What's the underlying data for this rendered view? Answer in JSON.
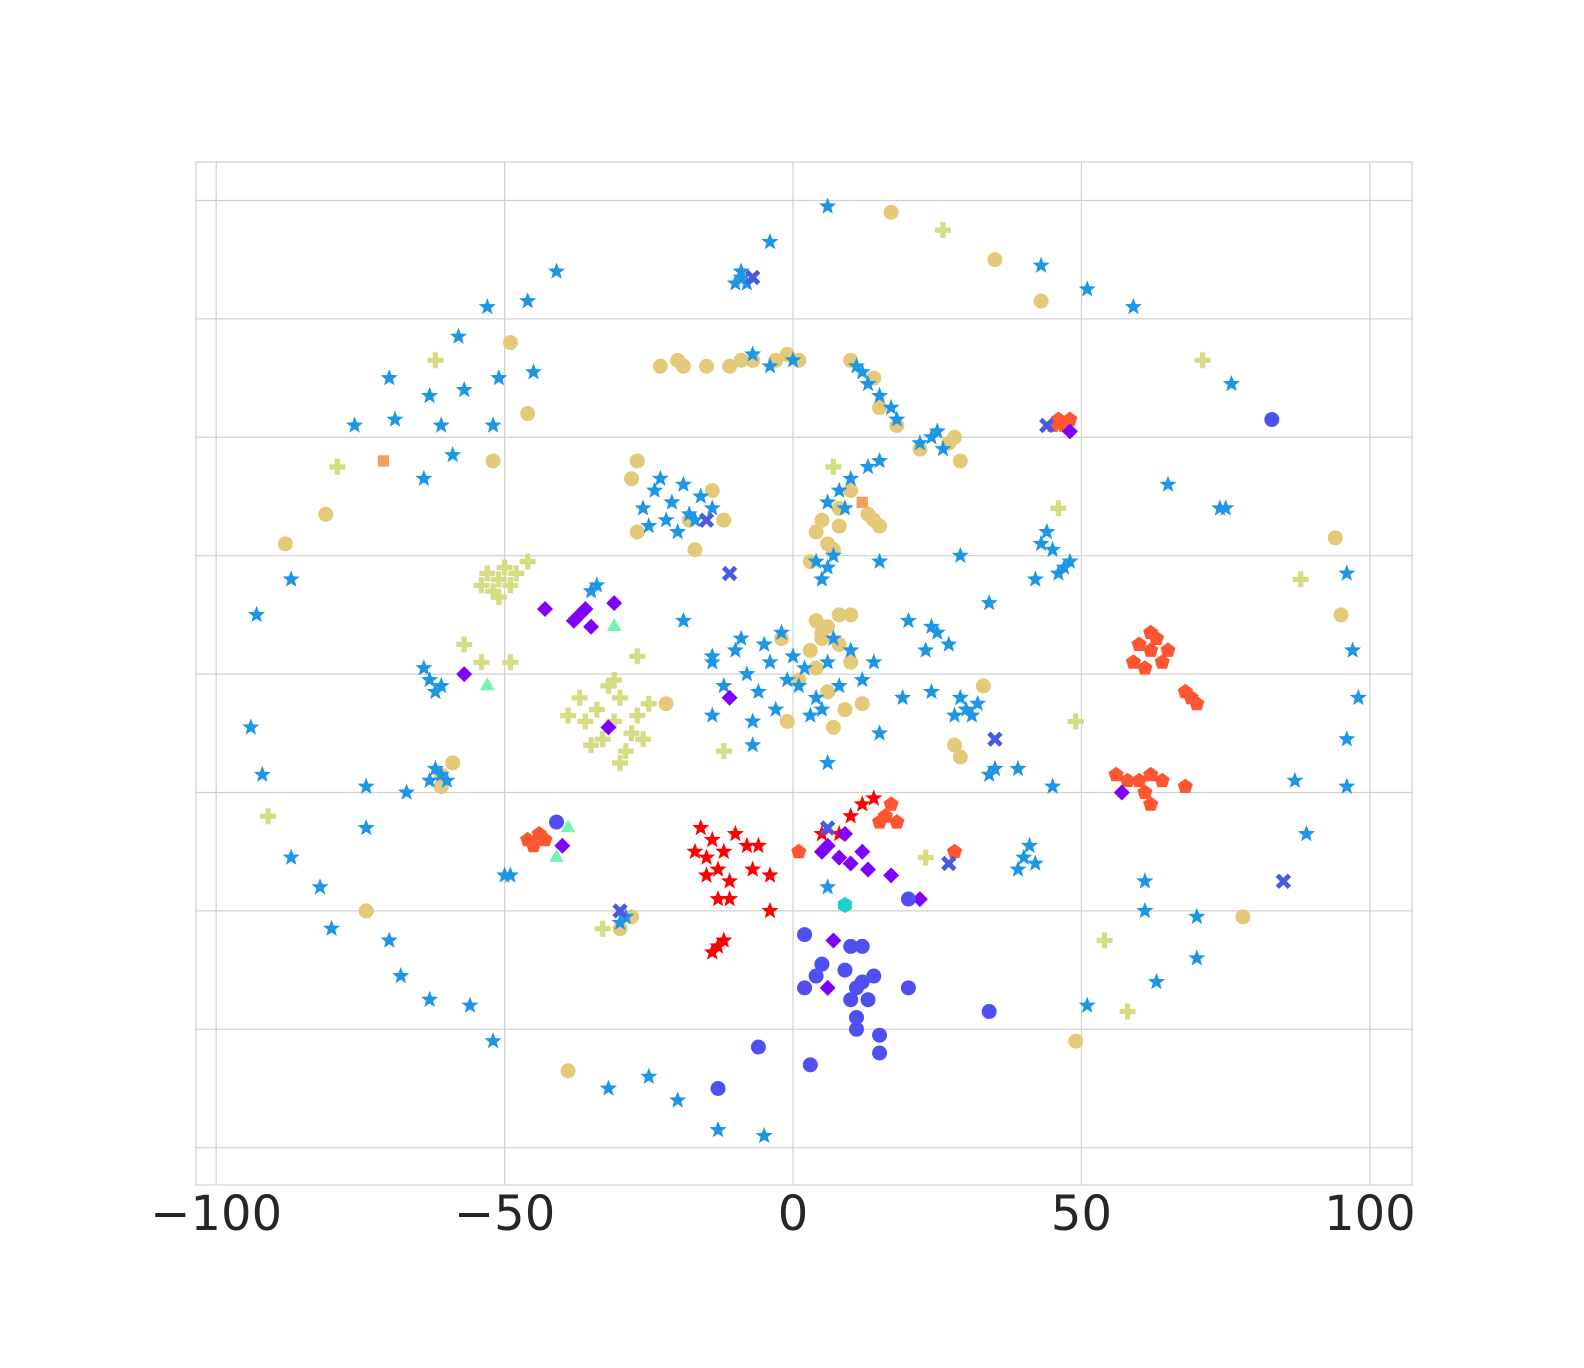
{
  "chart_data": {
    "type": "scatter",
    "xlim": [
      -103.5,
      107.3
    ],
    "ylim": [
      -86.3,
      86.5
    ],
    "xticks": [
      {
        "value": -100,
        "label": "−100"
      },
      {
        "value": -50,
        "label": "−50"
      },
      0,
      50,
      100
    ],
    "yticks": [
      -80,
      -60,
      -40,
      -20,
      0,
      20,
      40,
      60,
      80
    ],
    "show_ytick_labels": false,
    "grid": true,
    "series": [
      {
        "color": "#e3c978",
        "marker": "circle",
        "x": [
          17,
          35,
          43,
          -49,
          -46,
          -52,
          -81,
          -88,
          94,
          95,
          78,
          49,
          -39,
          -74,
          -23,
          -19,
          -15,
          -11,
          -7,
          -3,
          1,
          -1,
          -9,
          -20,
          10,
          14,
          15,
          18,
          22,
          27,
          29,
          28,
          6,
          4,
          8,
          3,
          5,
          7,
          14,
          15,
          13,
          8,
          10,
          1,
          4,
          6,
          3,
          8,
          -1,
          9,
          5,
          7,
          10,
          -2,
          12,
          4,
          -18,
          -28,
          -27,
          -14,
          -17,
          -27,
          -12,
          28,
          29,
          33,
          -61,
          -61,
          -30,
          -28,
          8,
          10,
          6,
          5,
          -22,
          -59
        ],
        "y": [
          78,
          70,
          63,
          56,
          44,
          36,
          27,
          22,
          23,
          10,
          -41,
          -62,
          -67,
          -40,
          52,
          52,
          52,
          52,
          53,
          53,
          53,
          54,
          53,
          53,
          53,
          50,
          45,
          42,
          38,
          39,
          36,
          40,
          22,
          24,
          25,
          19,
          26,
          21,
          26,
          25,
          27,
          28,
          31,
          -1,
          1,
          -3,
          4,
          5,
          -8,
          -6,
          7,
          -9,
          2,
          6,
          -5,
          9,
          26,
          33,
          24,
          31,
          21,
          36,
          26,
          -12,
          -14,
          -2,
          -19,
          -17,
          -43,
          -41,
          10,
          10,
          8,
          6,
          -5,
          -15
        ]
      },
      {
        "color": "#d5dc84",
        "marker": "plus",
        "x": [
          26,
          -62,
          -79,
          71,
          88,
          46,
          49,
          54,
          58,
          -91,
          -33,
          -46,
          -27,
          -57,
          -49,
          -54,
          -12,
          7,
          23,
          -51,
          -53,
          -49,
          -52,
          -50,
          -48,
          -54,
          -51,
          -31,
          -34,
          -28,
          -30,
          -33,
          -27,
          -36,
          -29,
          -32,
          -25,
          -37,
          -30,
          -26,
          -35,
          -31,
          -39
        ],
        "y": [
          75,
          53,
          35,
          53,
          16,
          28,
          -8,
          -45,
          -57,
          -24,
          -43,
          19,
          3,
          5,
          2,
          2,
          -13,
          35,
          -31,
          16,
          17,
          15,
          14,
          18,
          17,
          15,
          13,
          -8,
          -6,
          -10,
          -4,
          -11,
          -7,
          -8,
          -13,
          -2,
          -5,
          -4,
          -15,
          -11,
          -12,
          -1,
          -7
        ]
      },
      {
        "color": "#1e96e6",
        "marker": "star",
        "x": [
          6,
          -4,
          -41,
          -46,
          -53,
          -58,
          -70,
          -63,
          -57,
          -51,
          -45,
          -76,
          -69,
          -61,
          -52,
          -59,
          -64,
          -87,
          -93,
          -94,
          -92,
          -74,
          -67,
          -74,
          -87,
          -82,
          -80,
          -70,
          -68,
          -63,
          -56,
          -52,
          -32,
          -25,
          -20,
          -13,
          -5,
          43,
          51,
          59,
          76,
          96,
          97,
          98,
          96,
          96,
          87,
          89,
          61,
          61,
          70,
          70,
          63,
          51,
          45,
          39,
          42,
          34,
          -9,
          -10,
          -8,
          -9,
          -21,
          -24,
          -18,
          -22,
          -19,
          -26,
          -16,
          -20,
          -23,
          -14,
          -25,
          -17,
          -1,
          -4,
          2,
          -6,
          4,
          0,
          -8,
          6,
          -3,
          3,
          -10,
          8,
          -5,
          1,
          -12,
          10,
          5,
          -7,
          12,
          -2,
          -9,
          7,
          -14,
          14,
          30,
          29,
          31,
          28,
          32,
          6,
          5,
          7,
          4,
          44,
          43,
          45,
          47,
          46,
          48,
          75,
          74,
          65,
          40,
          41,
          39,
          42,
          -61,
          -62,
          -60,
          -63,
          -63,
          -64,
          -61,
          -62,
          -30,
          -29,
          -50,
          -49,
          24,
          22,
          26,
          25,
          17,
          15,
          18,
          12,
          13,
          11,
          8,
          6,
          10,
          9,
          15,
          13,
          25,
          24,
          27,
          23,
          35,
          34,
          29,
          -19,
          -35,
          -34,
          -4,
          0,
          -7,
          15,
          20,
          19,
          15,
          24,
          -7,
          6,
          -14,
          -14,
          6
        ],
        "y": [
          79,
          73,
          68,
          63,
          62,
          57,
          50,
          47,
          48,
          50,
          51,
          42,
          43,
          42,
          42,
          37,
          33,
          16,
          10,
          -9,
          -17,
          -19,
          -20,
          -26,
          -31,
          -36,
          -43,
          -45,
          -51,
          -55,
          -56,
          -62,
          -70,
          -68,
          -72,
          -77,
          -78,
          69,
          65,
          62,
          49,
          17,
          4,
          -4,
          -11,
          -19,
          -18,
          -27,
          -35,
          -40,
          -41,
          -48,
          -52,
          -56,
          -19,
          -16,
          16,
          12,
          67,
          66,
          66,
          68,
          29,
          31,
          27,
          26,
          32,
          28,
          30,
          24,
          33,
          28,
          25,
          26,
          -1,
          2,
          1,
          -3,
          -4,
          3,
          0,
          2,
          -6,
          -7,
          4,
          -2,
          5,
          -2,
          -2,
          4,
          -6,
          -8,
          -1,
          7,
          6,
          6,
          3,
          2,
          -6,
          -4,
          -7,
          -7,
          -5,
          18,
          16,
          20,
          19,
          24,
          22,
          21,
          18,
          17,
          19,
          28,
          28,
          32,
          -31,
          -29,
          -33,
          -32,
          -17,
          -16,
          -18,
          -18,
          -1,
          1,
          -2,
          -3,
          -42,
          -41,
          -34,
          -34,
          40,
          39,
          38,
          41,
          45,
          47,
          43,
          51,
          49,
          52,
          31,
          29,
          33,
          28,
          36,
          35,
          7,
          8,
          5,
          4,
          -16,
          -17,
          20,
          9,
          14,
          15,
          52,
          53,
          54,
          19,
          9,
          -4,
          -10,
          -3,
          -12,
          -15,
          2,
          -7,
          -36
        ]
      },
      {
        "color": "#ff0000",
        "marker": "star",
        "x": [
          -14,
          -16,
          -12,
          -10,
          -15,
          -8,
          -17,
          -13,
          -6,
          -11,
          -15,
          -4,
          -7,
          -13,
          -12,
          -14,
          -4,
          -13,
          -11,
          12,
          14,
          10,
          8,
          5
        ],
        "y": [
          -28,
          -26,
          -30,
          -27,
          -31,
          -29,
          -30,
          -33,
          -29,
          -35,
          -34,
          -34,
          -33,
          -46,
          -45,
          -47,
          -40,
          -38,
          -38,
          -22,
          -21,
          -24,
          -27,
          -27
        ]
      },
      {
        "color": "#ff5530",
        "marker": "pentagon",
        "x": [
          46,
          47,
          45,
          48,
          62,
          60,
          64,
          63,
          59,
          61,
          65,
          62,
          69,
          68,
          70,
          60,
          62,
          64,
          58,
          61,
          56,
          68,
          62,
          16,
          17,
          15,
          18,
          1,
          28,
          -44,
          -45,
          -43,
          -46
        ],
        "y": [
          43,
          42,
          42,
          43,
          4,
          5,
          2,
          6,
          2,
          1,
          4,
          7,
          -4,
          -3,
          -5,
          -18,
          -17,
          -18,
          -18,
          -20,
          -17,
          -19,
          -22,
          -24,
          -22,
          -25,
          -25,
          -30,
          -30,
          -27,
          -29,
          -28,
          -28
        ]
      },
      {
        "color": "#8000ff",
        "marker": "diamond",
        "x": [
          -37,
          -36,
          -38,
          -35,
          -43,
          -31,
          -57,
          6,
          8,
          5,
          10,
          12,
          9,
          13,
          17,
          22,
          48,
          57,
          7,
          6,
          -40,
          -32,
          -11
        ],
        "y": [
          10,
          11,
          9,
          8,
          11,
          12,
          0,
          -29,
          -31,
          -30,
          -32,
          -30,
          -27,
          -33,
          -34,
          -38,
          41,
          -20,
          -45,
          -53,
          -29,
          -9,
          -4
        ]
      },
      {
        "color": "#5050f2",
        "marker": "circle",
        "x": [
          11,
          12,
          10,
          13,
          9,
          11,
          14,
          12,
          10,
          5,
          4,
          2,
          20,
          11,
          15,
          15,
          3,
          -6,
          -13,
          34,
          83,
          20,
          2,
          -41
        ],
        "y": [
          -53,
          -52,
          -55,
          -55,
          -50,
          -58,
          -51,
          -46,
          -46,
          -49,
          -51,
          -53,
          -53,
          -60,
          -61,
          -64,
          -66,
          -63,
          -70,
          -57,
          43,
          -38,
          -44,
          -25
        ]
      },
      {
        "color": "#4a5ae0",
        "marker": "x",
        "x": [
          -7,
          -11,
          -15,
          85,
          35,
          27,
          6,
          -30,
          44
        ],
        "y": [
          67,
          17,
          26,
          -35,
          -11,
          -32,
          -26,
          -40,
          42
        ]
      },
      {
        "color": "#70f5b5",
        "marker": "triangle",
        "x": [
          -53,
          -31,
          -39,
          -41
        ],
        "y": [
          -2,
          8,
          -26,
          -31
        ]
      },
      {
        "color": "#f5a05a",
        "marker": "square",
        "x": [
          -71,
          12
        ],
        "y": [
          36,
          29
        ]
      },
      {
        "color": "#20d0d0",
        "marker": "hexagon",
        "x": [
          9
        ],
        "y": [
          -39
        ]
      }
    ]
  }
}
